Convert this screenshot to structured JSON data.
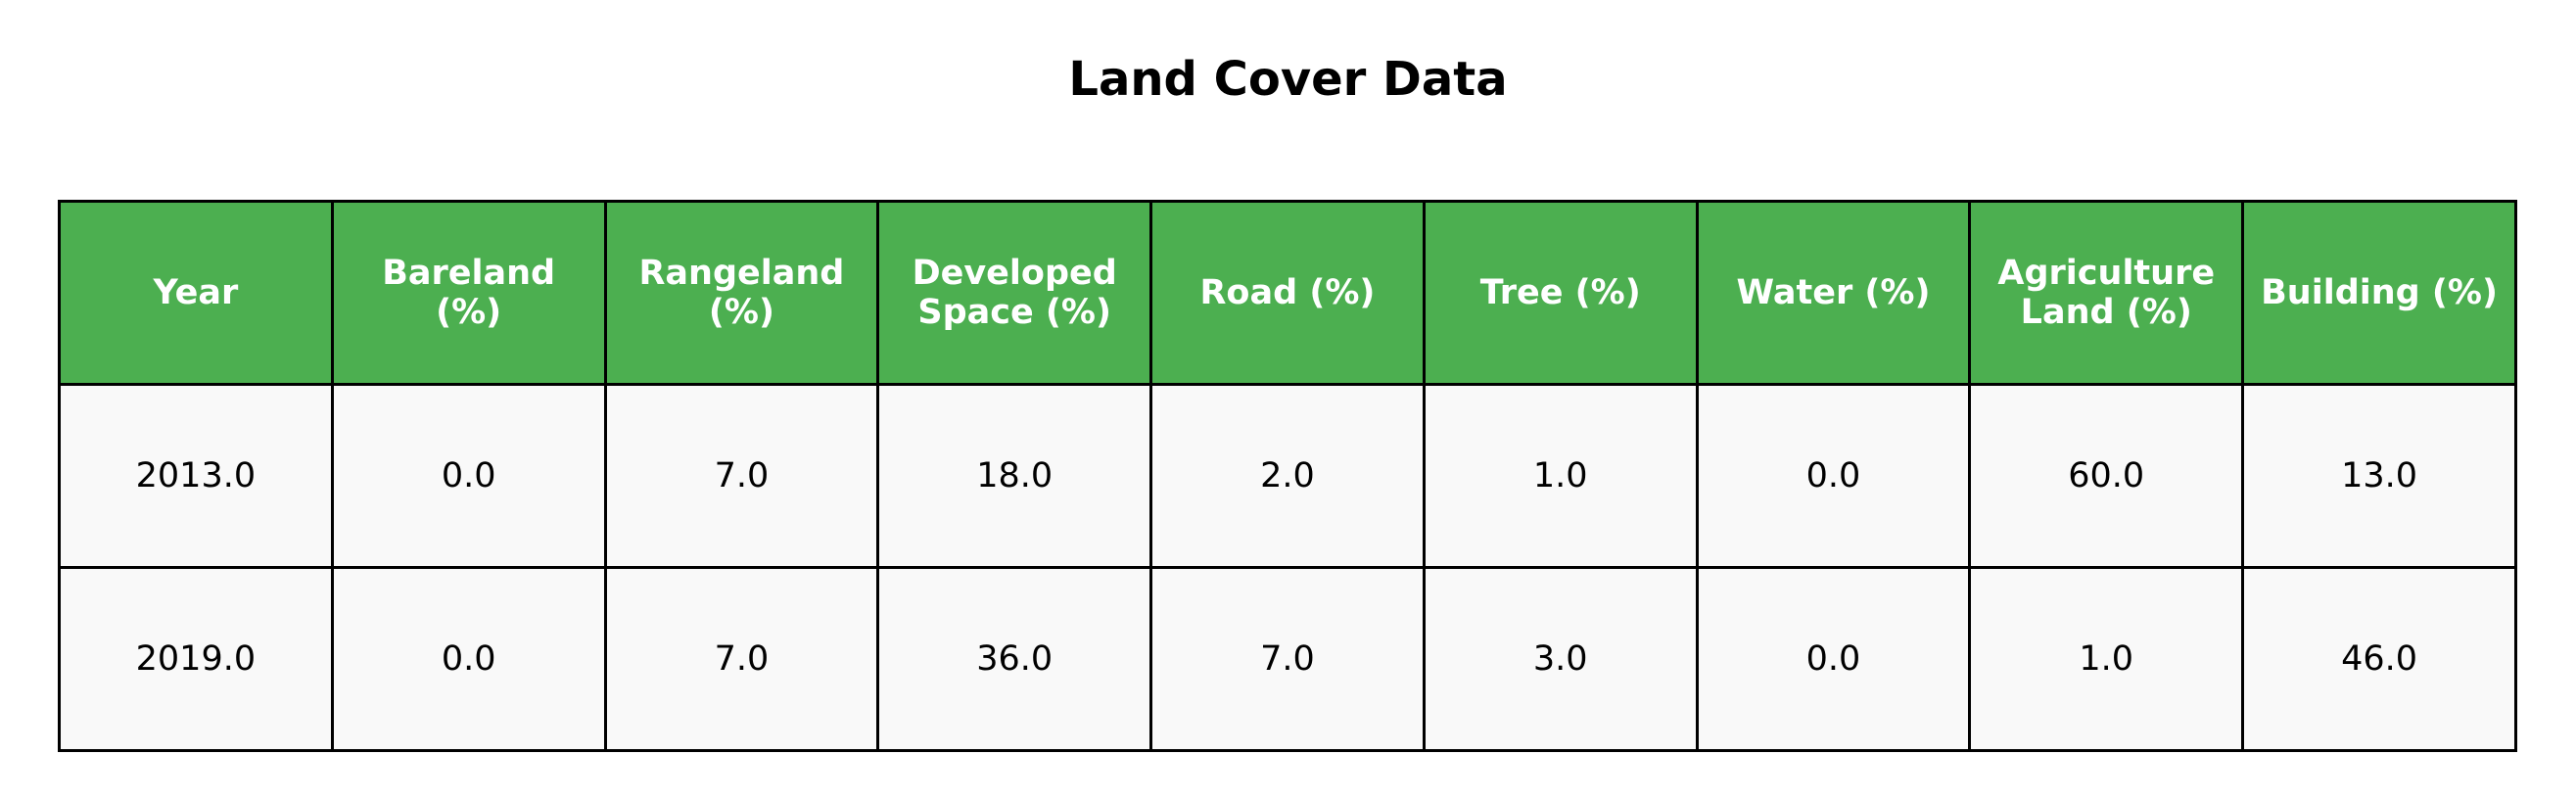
{
  "chart_data": {
    "type": "table",
    "title": "Land Cover Data",
    "columns": [
      "Year",
      "Bareland\n(%)",
      "Rangeland\n(%)",
      "Developed\nSpace (%)",
      "Road (%)",
      "Tree (%)",
      "Water (%)",
      "Agriculture\nLand (%)",
      "Building (%)"
    ],
    "rows": [
      [
        "2013.0",
        "0.0",
        "7.0",
        "18.0",
        "2.0",
        "1.0",
        "0.0",
        "60.0",
        "13.0"
      ],
      [
        "2019.0",
        "0.0",
        "7.0",
        "36.0",
        "7.0",
        "3.0",
        "0.0",
        "1.0",
        "46.0"
      ]
    ],
    "colors": {
      "header_background": "#4caf50",
      "header_text": "#ffffff",
      "cell_background": "#f9f9f9",
      "border": "#000000"
    }
  }
}
